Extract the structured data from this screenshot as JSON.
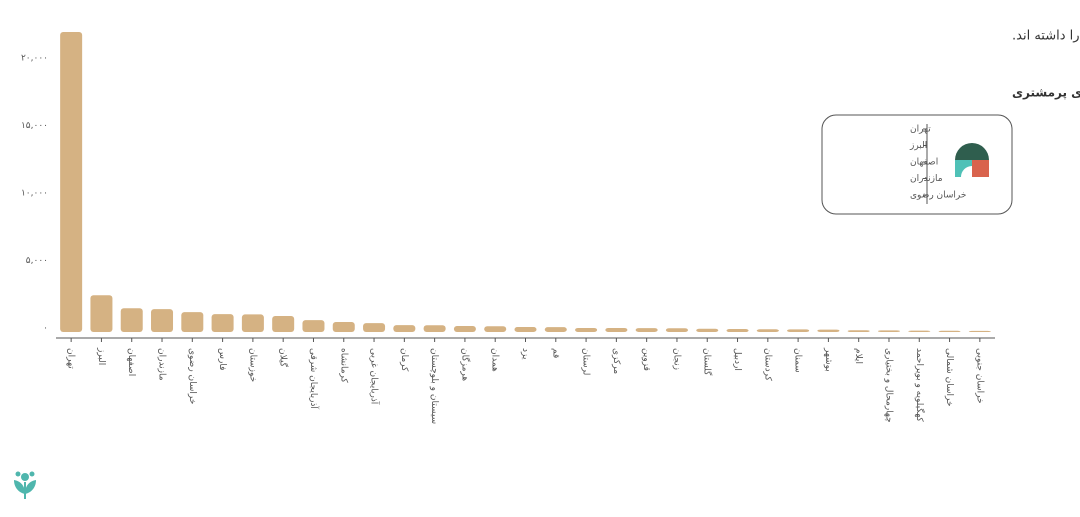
{
  "chart_data": {
    "type": "bar",
    "title": "استان تهران بیشترین و استان خراسان جنوبی کمترین تعداد مشتری از محصولات بومی‌محلی را داشته اند.",
    "categories": [
      "تهران",
      "البرز",
      "اصفهان",
      "مازندران",
      "خراسان رضوی",
      "فارس",
      "خوزستان",
      "گیلان",
      "آذربایجان شرقی",
      "کرمانشاه",
      "آذربایجان غربی",
      "کرمان",
      "سیستان و بلوچستان",
      "هرمزگان",
      "همدان",
      "یزد",
      "قم",
      "لرستان",
      "مرکزی",
      "قزوین",
      "زنجان",
      "گلستان",
      "اردبیل",
      "کردستان",
      "سمنان",
      "بوشهر",
      "ایلام",
      "چهارمحال و بختیاری",
      "کهگیلویه و بویراحمد",
      "خراسان شمالی",
      "خراسان جنوبی"
    ],
    "values": [
      22200,
      2720,
      1760,
      1690,
      1470,
      1320,
      1300,
      1180,
      880,
      740,
      660,
      510,
      500,
      440,
      430,
      370,
      360,
      300,
      300,
      290,
      280,
      240,
      220,
      200,
      190,
      180,
      130,
      120,
      100,
      90,
      80
    ],
    "color": "#d5b283",
    "ylim": [
      0,
      22500
    ],
    "yticks": [
      {
        "value": 0,
        "label": "۰"
      },
      {
        "value": 5000,
        "label": "۵,۰۰۰"
      },
      {
        "value": 10000,
        "label": "۱۰,۰۰۰"
      },
      {
        "value": 15000,
        "label": "۱۵,۰۰۰"
      },
      {
        "value": 20000,
        "label": "۲۰,۰۰۰"
      }
    ],
    "inset": {
      "title": "استان‌های پرمشتری",
      "items": [
        "تهران",
        "البرز",
        "اصفهان",
        "مازندران",
        "خراسان رضوی"
      ]
    }
  }
}
